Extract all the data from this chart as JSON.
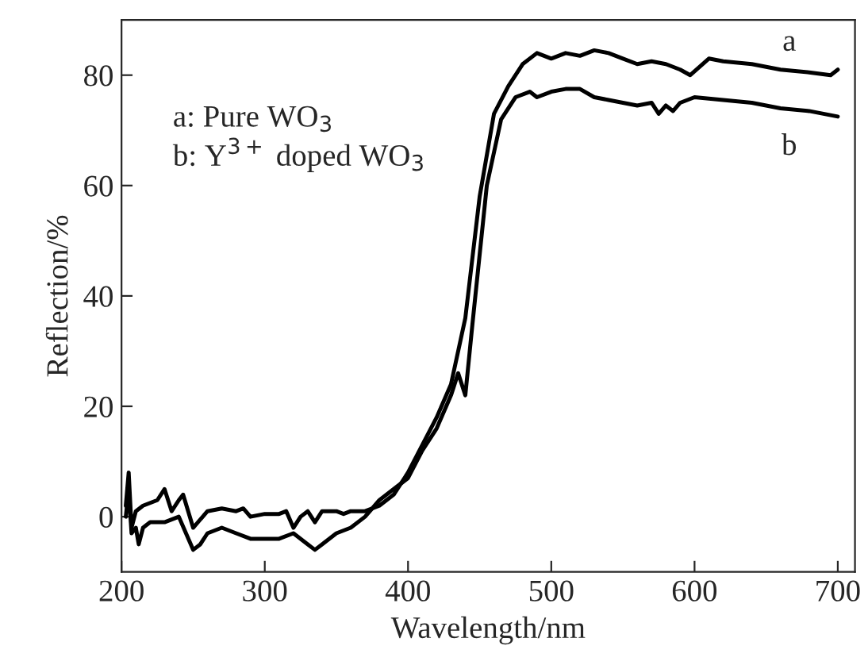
{
  "chart_data": {
    "type": "line",
    "xlabel": "Wavelength/nm",
    "ylabel": "Reflection/%",
    "xlim": [
      200,
      712
    ],
    "ylim": [
      -10,
      90
    ],
    "xticks": [
      200,
      300,
      400,
      500,
      600,
      700
    ],
    "yticks": [
      0,
      20,
      40,
      60,
      80
    ],
    "grid": false,
    "legend": false,
    "marker": "none",
    "line_style": "solid",
    "annotations": [
      "a: Pure WO$_{3}$",
      "b: Y$^{3+}$ doped WO$_{3}$"
    ],
    "series": [
      {
        "name": "a",
        "color": "#000000",
        "x": [
          203,
          205,
          207,
          210,
          215,
          225,
          230,
          235,
          240,
          243,
          250,
          260,
          270,
          280,
          285,
          290,
          300,
          310,
          315,
          320,
          325,
          330,
          335,
          340,
          350,
          355,
          360,
          370,
          380,
          390,
          400,
          410,
          420,
          430,
          440,
          450,
          460,
          470,
          480,
          490,
          500,
          510,
          520,
          530,
          540,
          550,
          560,
          570,
          580,
          590,
          597,
          610,
          620,
          640,
          660,
          680,
          695,
          700
        ],
        "values": [
          2,
          8,
          -2,
          1,
          2,
          3,
          5,
          1,
          3,
          4,
          -2,
          1,
          1.5,
          1,
          1.5,
          0,
          0.5,
          0.5,
          1,
          -2,
          0,
          1,
          -1,
          1,
          1,
          0.5,
          1,
          1,
          2,
          4,
          8,
          13,
          18,
          24,
          36,
          58,
          73,
          78,
          82,
          84,
          83,
          84,
          83.5,
          84.5,
          84,
          83,
          82,
          82.5,
          82,
          81,
          80,
          83,
          82.5,
          82,
          81,
          80.5,
          80,
          81
        ]
      },
      {
        "name": "b",
        "color": "#000000",
        "x": [
          203,
          205,
          207,
          210,
          212,
          215,
          220,
          230,
          240,
          245,
          250,
          255,
          260,
          270,
          280,
          290,
          300,
          310,
          320,
          330,
          335,
          340,
          350,
          360,
          370,
          380,
          390,
          400,
          410,
          420,
          430,
          435,
          440,
          445,
          455,
          465,
          475,
          485,
          490,
          500,
          510,
          520,
          530,
          540,
          550,
          560,
          570,
          575,
          580,
          585,
          590,
          600,
          620,
          640,
          660,
          680,
          700
        ],
        "values": [
          0,
          5,
          -3,
          -2,
          -5,
          -2,
          -1,
          -1,
          0,
          -3,
          -6,
          -5,
          -3,
          -2,
          -3,
          -4,
          -4,
          -4,
          -3,
          -5,
          -6,
          -5,
          -3,
          -2,
          0,
          3,
          5,
          7,
          12,
          16,
          22,
          26,
          22,
          35,
          60,
          72,
          76,
          77,
          76,
          77,
          77.5,
          77.5,
          76,
          75.5,
          75,
          74.5,
          75,
          73,
          74.5,
          73.5,
          75,
          76,
          75.5,
          75,
          74,
          73.5,
          72.5
        ]
      }
    ]
  }
}
